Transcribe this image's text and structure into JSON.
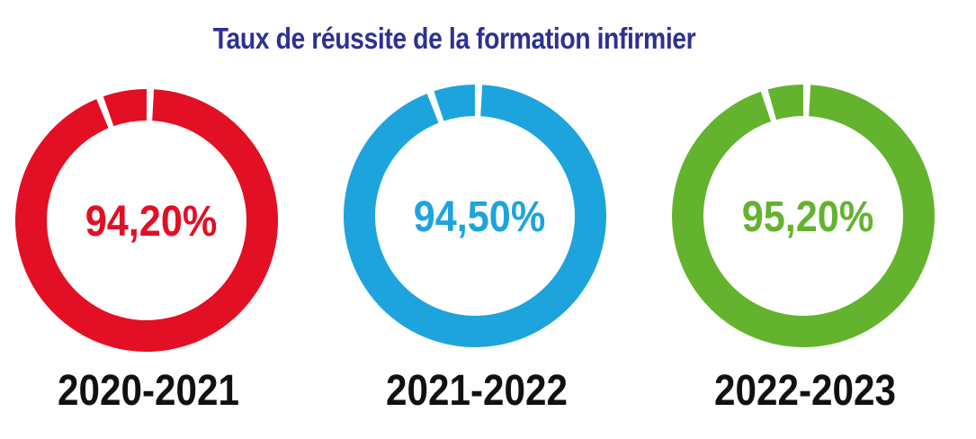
{
  "title": "Taux de réussite de la formation infirmier",
  "chart_data": {
    "type": "donut",
    "title": "Taux de réussite de la formation infirmier",
    "categories": [
      "2020-2021",
      "2021-2022",
      "2022-2023"
    ],
    "values": [
      94.2,
      94.5,
      95.2
    ],
    "labels": [
      "94,20%",
      "94,50%",
      "95,20%"
    ],
    "colors": [
      "#e30f24",
      "#1ea4dd",
      "#63b32e"
    ],
    "unit": "%"
  }
}
